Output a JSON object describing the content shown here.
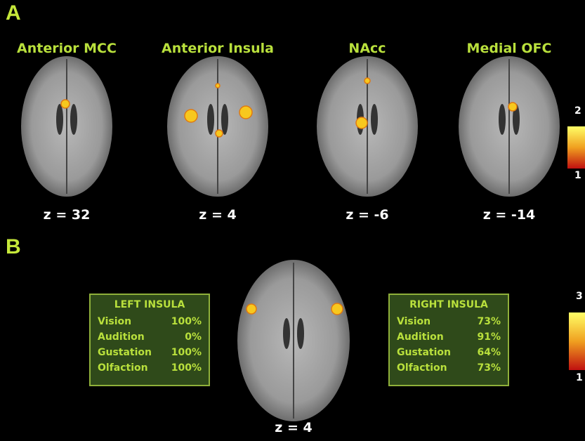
{
  "panel_a": {
    "label": "A",
    "slices": [
      {
        "title": "Anterior MCC",
        "z": "z = 32"
      },
      {
        "title": "Anterior Insula",
        "z": "z = 4"
      },
      {
        "title": "NAcc",
        "z": "z = -6"
      },
      {
        "title": "Medial OFC",
        "z": "z = -14"
      }
    ],
    "colorbar": {
      "max": "2",
      "min": "1"
    }
  },
  "panel_b": {
    "label": "B",
    "z": "z = 4",
    "colorbar": {
      "max": "3",
      "min": "1"
    },
    "left_table": {
      "title": "LEFT INSULA",
      "rows": [
        [
          "Vision",
          "100%"
        ],
        [
          "Audition",
          "0%"
        ],
        [
          "Gustation",
          "100%"
        ],
        [
          "Olfaction",
          "100%"
        ]
      ]
    },
    "right_table": {
      "title": "RIGHT INSULA",
      "rows": [
        [
          "Vision",
          "73%"
        ],
        [
          "Audition",
          "91%"
        ],
        [
          "Gustation",
          "64%"
        ],
        [
          "Olfaction",
          "73%"
        ]
      ]
    }
  }
}
